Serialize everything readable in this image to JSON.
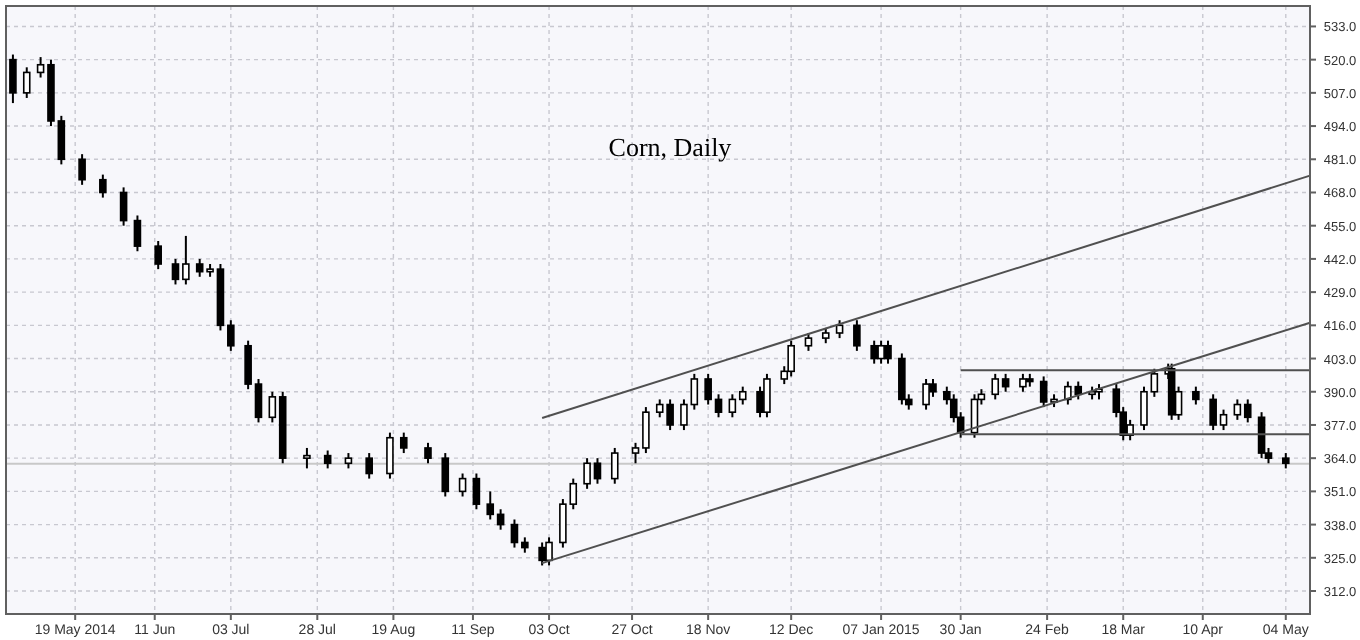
{
  "chart_data": {
    "type": "candlestick",
    "title": "Corn, Daily",
    "color": "#000000",
    "grid": true,
    "xlim": [
      "2014-04-29",
      "2015-05-11"
    ],
    "xticks": [
      {
        "value": "2014-05-19",
        "label": "19 May 2014"
      },
      {
        "value": "2014-06-11",
        "label": "11 Jun"
      },
      {
        "value": "2014-07-03",
        "label": "03 Jul"
      },
      {
        "value": "2014-07-28",
        "label": "28 Jul"
      },
      {
        "value": "2014-08-19",
        "label": "19 Aug"
      },
      {
        "value": "2014-09-11",
        "label": "11 Sep"
      },
      {
        "value": "2014-10-03",
        "label": "03 Oct"
      },
      {
        "value": "2014-10-27",
        "label": "27 Oct"
      },
      {
        "value": "2014-11-18",
        "label": "18 Nov"
      },
      {
        "value": "2014-12-12",
        "label": "12 Dec"
      },
      {
        "value": "2015-01-07",
        "label": "07 Jan 2015"
      },
      {
        "value": "2015-01-30",
        "label": "30 Jan"
      },
      {
        "value": "2015-02-24",
        "label": "24 Feb"
      },
      {
        "value": "2015-03-18",
        "label": "18 Mar"
      },
      {
        "value": "2015-04-10",
        "label": "10 Apr"
      },
      {
        "value": "2015-05-04",
        "label": "04 May"
      }
    ],
    "ylim": [
      303,
      541
    ],
    "yticks": [
      {
        "value": 312,
        "label": "312.0"
      },
      {
        "value": 325,
        "label": "325.0"
      },
      {
        "value": 338,
        "label": "338.0"
      },
      {
        "value": 351,
        "label": "351.0"
      },
      {
        "value": 364,
        "label": "364.0"
      },
      {
        "value": 377,
        "label": "377.0"
      },
      {
        "value": 390,
        "label": "390.0"
      },
      {
        "value": 403,
        "label": "403.0"
      },
      {
        "value": 416,
        "label": "416.0"
      },
      {
        "value": 429,
        "label": "429.0"
      },
      {
        "value": 442,
        "label": "442.0"
      },
      {
        "value": 455,
        "label": "455.0"
      },
      {
        "value": 468,
        "label": "468.0"
      },
      {
        "value": 481,
        "label": "481.0"
      },
      {
        "value": 494,
        "label": "494.0"
      },
      {
        "value": 507,
        "label": "507.0"
      },
      {
        "value": 520,
        "label": "520.0"
      },
      {
        "value": 533,
        "label": "533.0"
      }
    ],
    "x": [
      "2014-05-01",
      "2014-05-05",
      "2014-05-09",
      "2014-05-12",
      "2014-05-15",
      "2014-05-21",
      "2014-05-27",
      "2014-06-02",
      "2014-06-06",
      "2014-06-12",
      "2014-06-17",
      "2014-06-20",
      "2014-06-24",
      "2014-06-27",
      "2014-06-30",
      "2014-07-03",
      "2014-07-08",
      "2014-07-11",
      "2014-07-15",
      "2014-07-18",
      "2014-07-25",
      "2014-07-31",
      "2014-08-06",
      "2014-08-12",
      "2014-08-18",
      "2014-08-22",
      "2014-08-29",
      "2014-09-03",
      "2014-09-08",
      "2014-09-12",
      "2014-09-16",
      "2014-09-19",
      "2014-09-23",
      "2014-09-26",
      "2014-10-01",
      "2014-10-03",
      "2014-10-07",
      "2014-10-10",
      "2014-10-14",
      "2014-10-17",
      "2014-10-22",
      "2014-10-28",
      "2014-10-31",
      "2014-11-04",
      "2014-11-07",
      "2014-11-11",
      "2014-11-14",
      "2014-11-18",
      "2014-11-21",
      "2014-11-25",
      "2014-11-28",
      "2014-12-03",
      "2014-12-05",
      "2014-12-10",
      "2014-12-12",
      "2014-12-17",
      "2014-12-22",
      "2014-12-26",
      "2014-12-31",
      "2015-01-05",
      "2015-01-07",
      "2015-01-09",
      "2015-01-13",
      "2015-01-15",
      "2015-01-20",
      "2015-01-22",
      "2015-01-26",
      "2015-01-28",
      "2015-01-30",
      "2015-02-03",
      "2015-02-05",
      "2015-02-09",
      "2015-02-12",
      "2015-02-17",
      "2015-02-19",
      "2015-02-23",
      "2015-02-26",
      "2015-03-02",
      "2015-03-05",
      "2015-03-09",
      "2015-03-11",
      "2015-03-16",
      "2015-03-18",
      "2015-03-20",
      "2015-03-24",
      "2015-03-27",
      "2015-03-31",
      "2015-04-01",
      "2015-04-03",
      "2015-04-08",
      "2015-04-13",
      "2015-04-16",
      "2015-04-20",
      "2015-04-23",
      "2015-04-27",
      "2015-04-29",
      "2015-05-04"
    ],
    "ohlc": [
      [
        520,
        522,
        503,
        507
      ],
      [
        507,
        517,
        505,
        515
      ],
      [
        515,
        521,
        513,
        518
      ],
      [
        518,
        520,
        494,
        496
      ],
      [
        496,
        498,
        479,
        481
      ],
      [
        481,
        483,
        471,
        473
      ],
      [
        473,
        475,
        466,
        468
      ],
      [
        468,
        470,
        455,
        457
      ],
      [
        457,
        459,
        445,
        447
      ],
      [
        447,
        449,
        438,
        440
      ],
      [
        440,
        442,
        432,
        434
      ],
      [
        434,
        451,
        432,
        440
      ],
      [
        440,
        442,
        435,
        437
      ],
      [
        437,
        440,
        435,
        438
      ],
      [
        438,
        440,
        414,
        416
      ],
      [
        416,
        418,
        406,
        408
      ],
      [
        408,
        410,
        391,
        393
      ],
      [
        393,
        395,
        378,
        380
      ],
      [
        380,
        390,
        378,
        388
      ],
      [
        388,
        390,
        362,
        364
      ],
      [
        364,
        368,
        360,
        365
      ],
      [
        365,
        367,
        360,
        362
      ],
      [
        362,
        366,
        360,
        364
      ],
      [
        364,
        366,
        356,
        358
      ],
      [
        358,
        374,
        356,
        372
      ],
      [
        372,
        374,
        366,
        368
      ],
      [
        368,
        370,
        362,
        364
      ],
      [
        364,
        366,
        349,
        351
      ],
      [
        351,
        358,
        349,
        356
      ],
      [
        356,
        358,
        344,
        346
      ],
      [
        346,
        351,
        340,
        342
      ],
      [
        342,
        344,
        336,
        338
      ],
      [
        338,
        340,
        329,
        331
      ],
      [
        331,
        333,
        327,
        329
      ],
      [
        329,
        331,
        322,
        324
      ],
      [
        324,
        333,
        322,
        331
      ],
      [
        331,
        348,
        329,
        346
      ],
      [
        346,
        356,
        344,
        354
      ],
      [
        354,
        364,
        352,
        362
      ],
      [
        362,
        364,
        354,
        356
      ],
      [
        356,
        368,
        354,
        366
      ],
      [
        366,
        370,
        362,
        368
      ],
      [
        368,
        384,
        366,
        382
      ],
      [
        382,
        387,
        380,
        385
      ],
      [
        385,
        387,
        375,
        377
      ],
      [
        377,
        387,
        375,
        385
      ],
      [
        385,
        397,
        383,
        395
      ],
      [
        395,
        397,
        385,
        387
      ],
      [
        387,
        389,
        380,
        382
      ],
      [
        382,
        389,
        380,
        387
      ],
      [
        387,
        392,
        385,
        390
      ],
      [
        390,
        392,
        380,
        382
      ],
      [
        382,
        397,
        380,
        395
      ],
      [
        395,
        400,
        393,
        398
      ],
      [
        398,
        410,
        396,
        408
      ],
      [
        408,
        413,
        406,
        411
      ],
      [
        411,
        415,
        409,
        413
      ],
      [
        413,
        418,
        411,
        416
      ],
      [
        416,
        418,
        406,
        408
      ],
      [
        408,
        410,
        401,
        403
      ],
      [
        403,
        410,
        401,
        408
      ],
      [
        408,
        410,
        401,
        403
      ],
      [
        403,
        405,
        385,
        387
      ],
      [
        387,
        389,
        383,
        385
      ],
      [
        385,
        395,
        383,
        393
      ],
      [
        393,
        395,
        388,
        390
      ],
      [
        390,
        392,
        385,
        387
      ],
      [
        387,
        389,
        378,
        380
      ],
      [
        380,
        382,
        372,
        374
      ],
      [
        374,
        389,
        372,
        387
      ],
      [
        387,
        391,
        385,
        389
      ],
      [
        389,
        397,
        387,
        395
      ],
      [
        395,
        397,
        390,
        392
      ],
      [
        392,
        397,
        390,
        395
      ],
      [
        395,
        397,
        392,
        394
      ],
      [
        394,
        396,
        384,
        386
      ],
      [
        386,
        389,
        384,
        387
      ],
      [
        387,
        394,
        385,
        392
      ],
      [
        392,
        394,
        387,
        389
      ],
      [
        389,
        392,
        387,
        390
      ],
      [
        390,
        393,
        387,
        391
      ],
      [
        391,
        393,
        380,
        382
      ],
      [
        382,
        384,
        371,
        373
      ],
      [
        373,
        379,
        371,
        377
      ],
      [
        377,
        392,
        375,
        390
      ],
      [
        390,
        399,
        388,
        397
      ],
      [
        397,
        401,
        395,
        399
      ],
      [
        399,
        401,
        379,
        381
      ],
      [
        381,
        392,
        379,
        390
      ],
      [
        390,
        392,
        385,
        387
      ],
      [
        387,
        389,
        375,
        377
      ],
      [
        377,
        383,
        375,
        381
      ],
      [
        381,
        387,
        379,
        385
      ],
      [
        385,
        387,
        378,
        380
      ],
      [
        380,
        382,
        364,
        366
      ],
      [
        366,
        368,
        362,
        364
      ],
      [
        364,
        366,
        360,
        362
      ]
    ],
    "series": [
      {
        "type": "line",
        "color": "#505050",
        "x": [
          "2014-10-01",
          "2015-05-11"
        ],
        "values": [
          379.7,
          474.6
        ]
      },
      {
        "type": "line",
        "color": "#505050",
        "x": [
          "2014-10-01",
          "2015-05-11"
        ],
        "values": [
          322.9,
          417
        ]
      },
      {
        "type": "line",
        "color": "#505050",
        "x": [
          "2015-01-30",
          "2015-05-11"
        ],
        "values": [
          398.4,
          398.4
        ]
      },
      {
        "type": "line",
        "color": "#505050",
        "x": [
          "2015-01-30",
          "2015-05-11"
        ],
        "values": [
          373.4,
          373.4
        ]
      }
    ],
    "ref_lines": [
      {
        "axis": "y",
        "value": 361.8,
        "color": "#c8c8c8"
      }
    ]
  }
}
